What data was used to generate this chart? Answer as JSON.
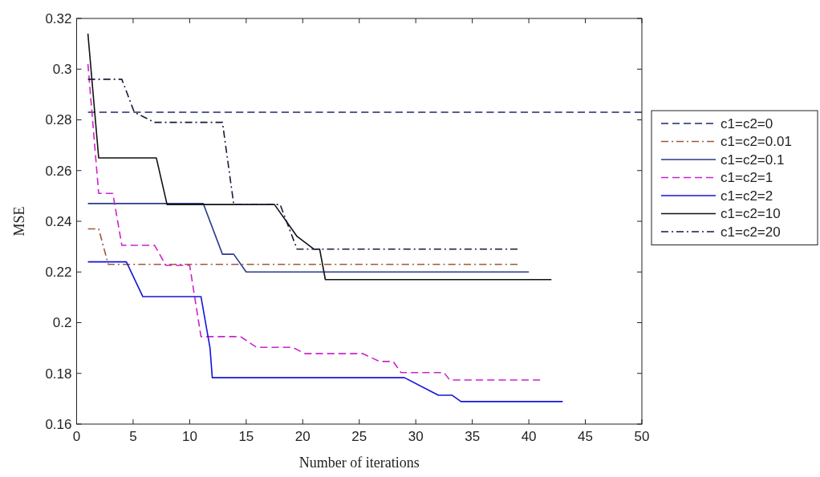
{
  "chart_data": {
    "type": "line",
    "xlabel": "Number of iterations",
    "ylabel": "MSE",
    "xlim": [
      0,
      50
    ],
    "ylim": [
      0.16,
      0.32
    ],
    "xticks": [
      0,
      5,
      10,
      15,
      20,
      25,
      30,
      35,
      40,
      45,
      50
    ],
    "yticks": [
      0.16,
      0.18,
      {
        "value": 0.2,
        "label": "0.2"
      },
      0.22,
      0.24,
      0.26,
      0.28,
      {
        "value": 0.3,
        "label": "0.3"
      },
      0.32
    ],
    "grid": false,
    "legend": "right",
    "marker": "none",
    "series": [
      {
        "name": "c1=c2=0",
        "color": "#1f2a6b",
        "line_style": "dashed",
        "x": [
          1,
          50
        ],
        "values": [
          0.283,
          0.283
        ]
      },
      {
        "name": "c1=c2=0.01",
        "color": "#9b5a3a",
        "line_style": "dashdot",
        "x": [
          1,
          1.95,
          2.8,
          39
        ],
        "values": [
          0.237,
          0.237,
          0.223,
          0.223
        ]
      },
      {
        "name": "c1=c2=0.1",
        "color": "#2b3a8a",
        "line_style": "solid",
        "x": [
          1,
          11.2,
          12.9,
          13.9,
          15,
          40
        ],
        "values": [
          0.247,
          0.247,
          0.227,
          0.227,
          0.22,
          0.22
        ]
      },
      {
        "name": "c1=c2=1",
        "color": "#cc22cc",
        "line_style": "dashed",
        "x": [
          1,
          1.95,
          3.2,
          4,
          6.9,
          7.9,
          10,
          11,
          14.5,
          15.9,
          19.1,
          20.2,
          25.3,
          26.8,
          28,
          28.7,
          32.5,
          33,
          41
        ],
        "values": [
          0.302,
          0.251,
          0.251,
          0.2305,
          0.2305,
          0.2226,
          0.2226,
          0.1945,
          0.1945,
          0.1903,
          0.1903,
          0.1878,
          0.1878,
          0.1847,
          0.1847,
          0.1803,
          0.1803,
          0.1774,
          0.1774
        ]
      },
      {
        "name": "c1=c2=2",
        "color": "#1414d8",
        "line_style": "solid",
        "x": [
          1,
          4.4,
          5.85,
          11,
          11.8,
          12,
          29,
          32,
          33.2,
          34,
          43
        ],
        "values": [
          0.224,
          0.224,
          0.2103,
          0.2103,
          0.19,
          0.1783,
          0.1783,
          0.1714,
          0.1714,
          0.1689,
          0.1689
        ]
      },
      {
        "name": "c1=c2=10",
        "color": "#111111",
        "line_style": "solid",
        "x": [
          1,
          1.95,
          7.05,
          8,
          17.5,
          19.5,
          21,
          21.5,
          22,
          42
        ],
        "values": [
          0.314,
          0.265,
          0.265,
          0.2466,
          0.2466,
          0.234,
          0.229,
          0.229,
          0.217,
          0.217
        ]
      },
      {
        "name": "c1=c2=20",
        "color": "#1a1a3a",
        "line_style": "dashdot",
        "x": [
          1,
          4,
          5.1,
          6.9,
          12.9,
          13.9,
          18,
          19.5,
          39
        ],
        "values": [
          0.296,
          0.296,
          0.283,
          0.279,
          0.279,
          0.2466,
          0.2466,
          0.229,
          0.229
        ]
      }
    ]
  }
}
